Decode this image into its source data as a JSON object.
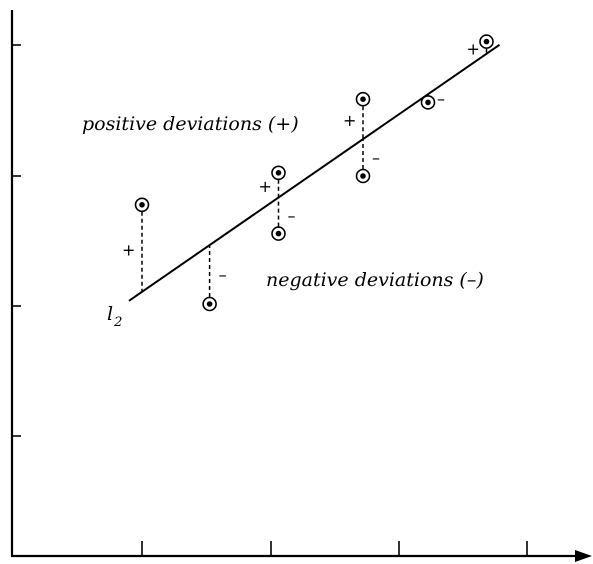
{
  "chart_data": {
    "type": "scatter",
    "title": "",
    "xlabel": "",
    "ylabel": "",
    "grid": false,
    "axis_ticks": {
      "x_count": 4,
      "y_count": 4
    },
    "points": [
      {
        "x": 0.0,
        "y": 2.55,
        "sign": "+"
      },
      {
        "x": 0.52,
        "y": 1.0,
        "sign": "–"
      },
      {
        "x": 1.05,
        "y": 3.05,
        "sign": "+"
      },
      {
        "x": 1.05,
        "y": 2.1,
        "sign": "–"
      },
      {
        "x": 1.7,
        "y": 4.2,
        "sign": "+"
      },
      {
        "x": 1.7,
        "y": 3.0,
        "sign": "–"
      },
      {
        "x": 2.2,
        "y": 4.15,
        "sign": "–"
      },
      {
        "x": 2.65,
        "y": 5.1,
        "sign": "+"
      }
    ],
    "regression_line": {
      "x": [
        -0.1,
        2.75
      ],
      "y": [
        1.05,
        5.05
      ]
    }
  },
  "labels": {
    "positive": "positive deviations (+)",
    "negative": "negative deviations (–)",
    "line_name": "l",
    "line_subscript": "2"
  }
}
